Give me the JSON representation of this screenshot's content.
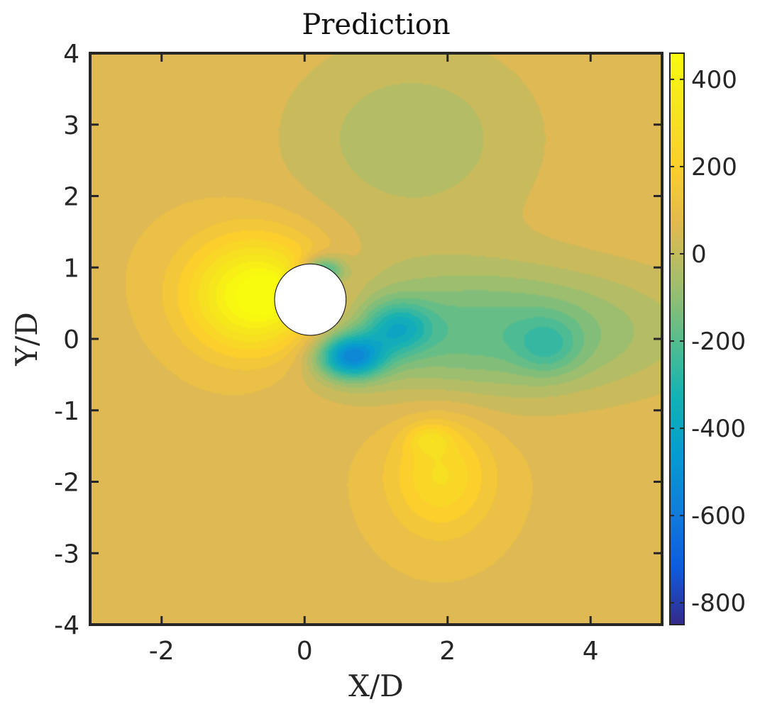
{
  "chart_data": {
    "type": "heatmap",
    "title": "Prediction",
    "xlabel": "X/D",
    "ylabel": "Y/D",
    "xlim": [
      -3,
      5
    ],
    "ylim": [
      -4,
      4
    ],
    "x_ticks": [
      -2,
      0,
      2,
      4
    ],
    "y_ticks": [
      -4,
      -3,
      -2,
      -1,
      0,
      1,
      2,
      3,
      4
    ],
    "x_tick_labels": [
      "-2",
      "0",
      "2",
      "4"
    ],
    "y_tick_labels": [
      "-4",
      "-3",
      "-2",
      "-1",
      "0",
      "1",
      "2",
      "3",
      "4"
    ],
    "colorbar": {
      "range": [
        -850,
        460
      ],
      "ticks": [
        400,
        200,
        0,
        -200,
        -400,
        -600,
        -800
      ],
      "tick_labels": [
        "400",
        "200",
        "0",
        "-200",
        "-400",
        "-600",
        "-800"
      ],
      "colormap": "parula"
    },
    "cylinder": {
      "center": [
        0.08,
        0.55
      ],
      "diameter": 1.0
    },
    "background_value": 80,
    "field_features": [
      {
        "name": "upstream-high-pressure-lobe",
        "x": -0.65,
        "y": 0.58,
        "peak": 460,
        "sx": 0.95,
        "sy": 0.8
      },
      {
        "name": "upstream-high-core",
        "x": -0.5,
        "y": 0.6,
        "peak": 200,
        "sx": 0.22,
        "sy": 0.22
      },
      {
        "name": "wake-low-band",
        "x": 2.5,
        "y": 0.1,
        "peak": -260,
        "sx": 2.6,
        "sy": 0.9
      },
      {
        "name": "near-wake-low-core-upper",
        "x": 0.25,
        "y": 0.95,
        "peak": -380,
        "sx": 0.3,
        "sy": 0.2
      },
      {
        "name": "near-wake-low-core-lower",
        "x": 0.65,
        "y": -0.25,
        "peak": -520,
        "sx": 0.45,
        "sy": 0.3
      },
      {
        "name": "near-wake-low-core-mid",
        "x": 1.3,
        "y": 0.15,
        "peak": -260,
        "sx": 0.45,
        "sy": 0.35
      },
      {
        "name": "far-wake-vortex",
        "x": 3.4,
        "y": -0.1,
        "peak": -140,
        "sx": 0.45,
        "sy": 0.4
      },
      {
        "name": "lower-high-lobe",
        "x": 1.9,
        "y": -1.9,
        "peak": 200,
        "sx": 0.7,
        "sy": 0.8
      },
      {
        "name": "lower-high-core",
        "x": 1.75,
        "y": -1.4,
        "peak": 120,
        "sx": 0.3,
        "sy": 0.2
      },
      {
        "name": "upper-mid-plateau",
        "x": 1.5,
        "y": 2.8,
        "peak": -120,
        "sx": 1.8,
        "sy": 1.4
      }
    ]
  }
}
